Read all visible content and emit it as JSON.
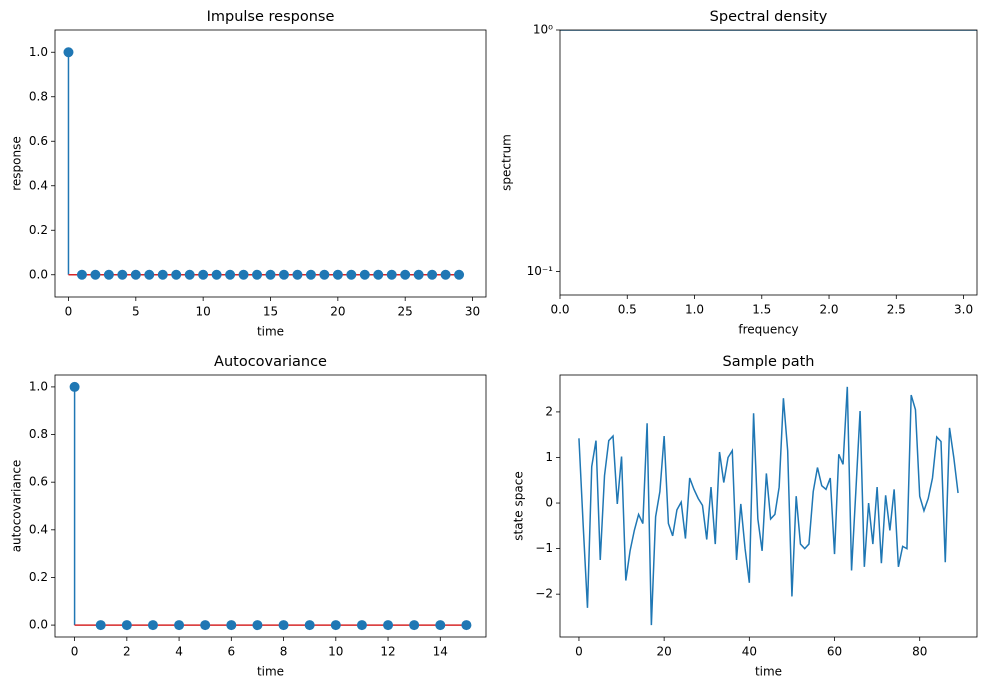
{
  "chart_data": [
    {
      "type": "stem",
      "title": "Impulse response",
      "xlabel": "time",
      "ylabel": "response",
      "x": [
        0,
        1,
        2,
        3,
        4,
        5,
        6,
        7,
        8,
        9,
        10,
        11,
        12,
        13,
        14,
        15,
        16,
        17,
        18,
        19,
        20,
        21,
        22,
        23,
        24,
        25,
        26,
        27,
        28,
        29
      ],
      "values": [
        1,
        0,
        0,
        0,
        0,
        0,
        0,
        0,
        0,
        0,
        0,
        0,
        0,
        0,
        0,
        0,
        0,
        0,
        0,
        0,
        0,
        0,
        0,
        0,
        0,
        0,
        0,
        0,
        0,
        0
      ],
      "color": "#1f77b4",
      "baseline_color": "#d62728",
      "xlim": [
        -1,
        31
      ],
      "ylim": [
        -0.1,
        1.1
      ],
      "xticks": [
        0,
        5,
        10,
        15,
        20,
        25,
        30
      ],
      "yticks": [
        {
          "value": 0,
          "label": "0.0"
        },
        0.2,
        0.4,
        0.6,
        0.8,
        {
          "value": 1,
          "label": "1.0"
        }
      ]
    },
    {
      "type": "line",
      "title": "Spectral density",
      "xlabel": "frequency",
      "ylabel": "spectrum",
      "x": [
        0,
        3.1
      ],
      "values": [
        1,
        1
      ],
      "color": "#1f77b4",
      "log_y": true,
      "xlim": [
        0,
        3.1
      ],
      "ylim": [
        0.08,
        1
      ],
      "xticks": [
        {
          "value": 0,
          "label": "0.0"
        },
        0.5,
        {
          "value": 1,
          "label": "1.0"
        },
        1.5,
        {
          "value": 2,
          "label": "2.0"
        },
        2.5,
        {
          "value": 3,
          "label": "3.0"
        }
      ],
      "yticks": [
        {
          "value": 0.1,
          "label": "10⁻¹"
        },
        {
          "value": 1,
          "label": "10⁰"
        }
      ]
    },
    {
      "type": "stem",
      "title": "Autocovariance",
      "xlabel": "time",
      "ylabel": "autocovariance",
      "x": [
        0,
        1,
        2,
        3,
        4,
        5,
        6,
        7,
        8,
        9,
        10,
        11,
        12,
        13,
        14,
        15
      ],
      "values": [
        1,
        0,
        0,
        0,
        0,
        0,
        0,
        0,
        0,
        0,
        0,
        0,
        0,
        0,
        0,
        0
      ],
      "color": "#1f77b4",
      "baseline_color": "#d62728",
      "xlim": [
        -0.75,
        15.75
      ],
      "ylim": [
        -0.05,
        1.05
      ],
      "xticks": [
        0,
        2,
        4,
        6,
        8,
        10,
        12,
        14
      ],
      "yticks": [
        {
          "value": 0,
          "label": "0.0"
        },
        0.2,
        0.4,
        0.6,
        0.8,
        {
          "value": 1,
          "label": "1.0"
        }
      ]
    },
    {
      "type": "line",
      "title": "Sample path",
      "xlabel": "time",
      "ylabel": "state space",
      "x": [
        0,
        1,
        2,
        3,
        4,
        5,
        6,
        7,
        8,
        9,
        10,
        11,
        12,
        13,
        14,
        15,
        16,
        17,
        18,
        19,
        20,
        21,
        22,
        23,
        24,
        25,
        26,
        27,
        28,
        29,
        30,
        31,
        32,
        33,
        34,
        35,
        36,
        37,
        38,
        39,
        40,
        41,
        42,
        43,
        44,
        45,
        46,
        47,
        48,
        49,
        50,
        51,
        52,
        53,
        54,
        55,
        56,
        57,
        58,
        59,
        60,
        61,
        62,
        63,
        64,
        65,
        66,
        67,
        68,
        69,
        70,
        71,
        72,
        73,
        74,
        75,
        76,
        77,
        78,
        79,
        80,
        81,
        82,
        83,
        84,
        85,
        86,
        87,
        88,
        89
      ],
      "values": [
        1.42,
        -0.5,
        -2.3,
        0.8,
        1.37,
        -1.25,
        0.6,
        1.37,
        1.47,
        -0.02,
        1.02,
        -1.7,
        -1.05,
        -0.6,
        -0.25,
        -0.45,
        1.75,
        -2.68,
        -0.3,
        0.25,
        1.47,
        -0.45,
        -0.72,
        -0.15,
        0.02,
        -0.78,
        0.55,
        0.3,
        0.1,
        -0.05,
        -0.8,
        0.35,
        -0.9,
        1.12,
        0.45,
        1.0,
        1.15,
        -1.25,
        -0.02,
        -1.0,
        -1.75,
        1.97,
        -0.35,
        -1.05,
        0.65,
        -0.35,
        -0.25,
        0.35,
        2.3,
        1.15,
        -2.05,
        0.15,
        -0.9,
        -1.0,
        -0.9,
        0.25,
        0.78,
        0.38,
        0.3,
        0.55,
        -1.12,
        1.07,
        0.85,
        2.55,
        -1.48,
        0.25,
        2.02,
        -1.4,
        0.0,
        -0.9,
        0.35,
        -1.32,
        0.17,
        -0.6,
        0.3,
        -1.4,
        -0.95,
        -1.0,
        2.37,
        2.05,
        0.15,
        -0.17,
        0.1,
        0.55,
        1.45,
        1.35,
        -1.3,
        1.65,
        1.0,
        0.22
      ],
      "color": "#1f77b4",
      "xlim": [
        -4.45,
        93.45
      ],
      "ylim": [
        -2.94,
        2.81
      ],
      "xticks": [
        0,
        20,
        40,
        60,
        80
      ],
      "yticks": [
        {
          "value": -2,
          "label": "−2"
        },
        {
          "value": -1,
          "label": "−1"
        },
        0,
        1,
        2
      ]
    }
  ]
}
